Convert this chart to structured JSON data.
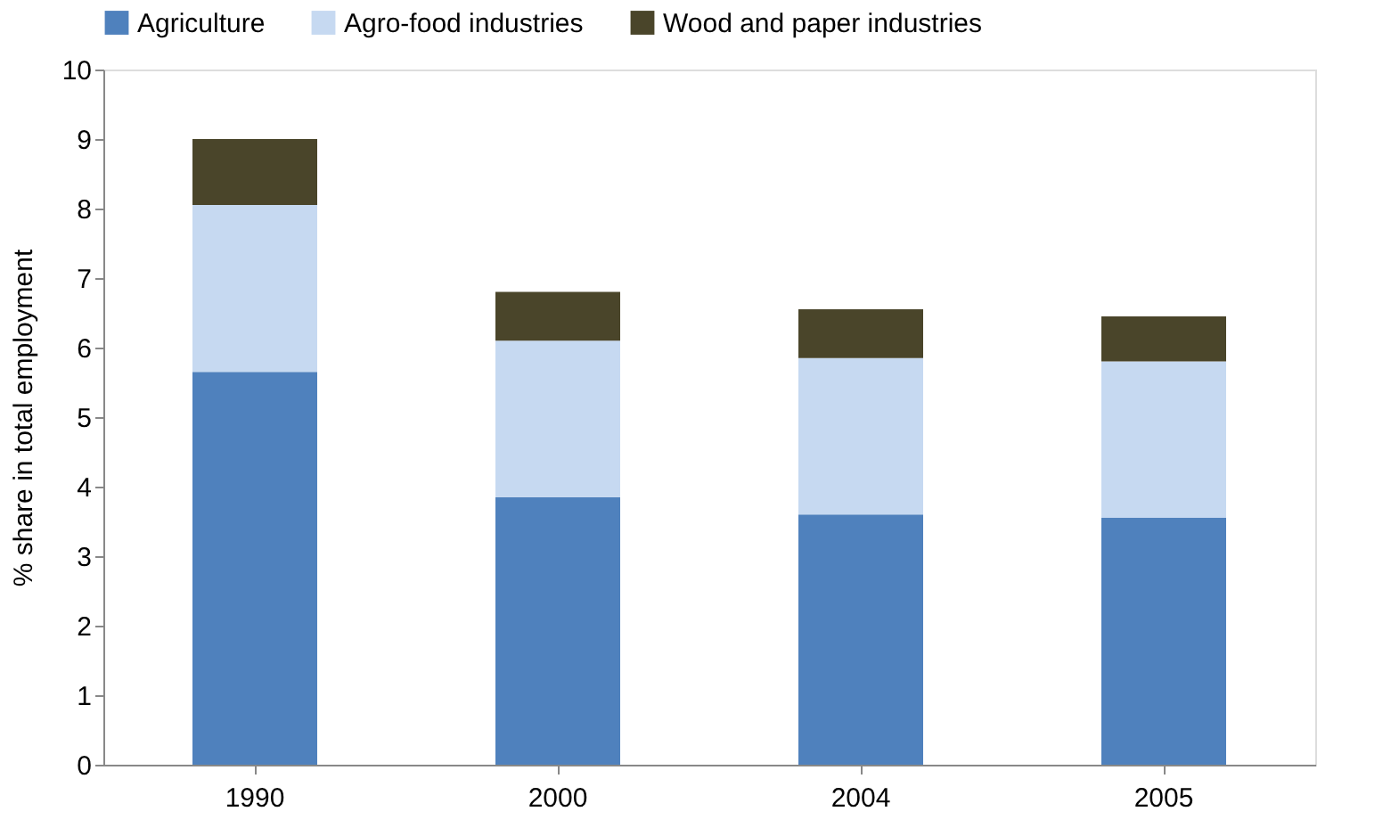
{
  "chart_data": {
    "type": "bar",
    "stacked": true,
    "ylabel": "% share in total employment",
    "categories": [
      "1990",
      "2000",
      "2004",
      "2005"
    ],
    "series": [
      {
        "name": "Agriculture",
        "color": "#4f81bd",
        "values": [
          5.65,
          3.85,
          3.6,
          3.55
        ]
      },
      {
        "name": "Agro-food industries",
        "color": "#c6d9f1",
        "values": [
          2.4,
          2.25,
          2.25,
          2.25
        ]
      },
      {
        "name": "Wood and paper industries",
        "color": "#4a452a",
        "values": [
          0.95,
          0.7,
          0.7,
          0.65
        ]
      }
    ],
    "ylim": [
      0,
      10
    ],
    "yticks": [
      0,
      1,
      2,
      3,
      4,
      5,
      6,
      7,
      8,
      9,
      10
    ],
    "grid": false,
    "legend": "top"
  }
}
